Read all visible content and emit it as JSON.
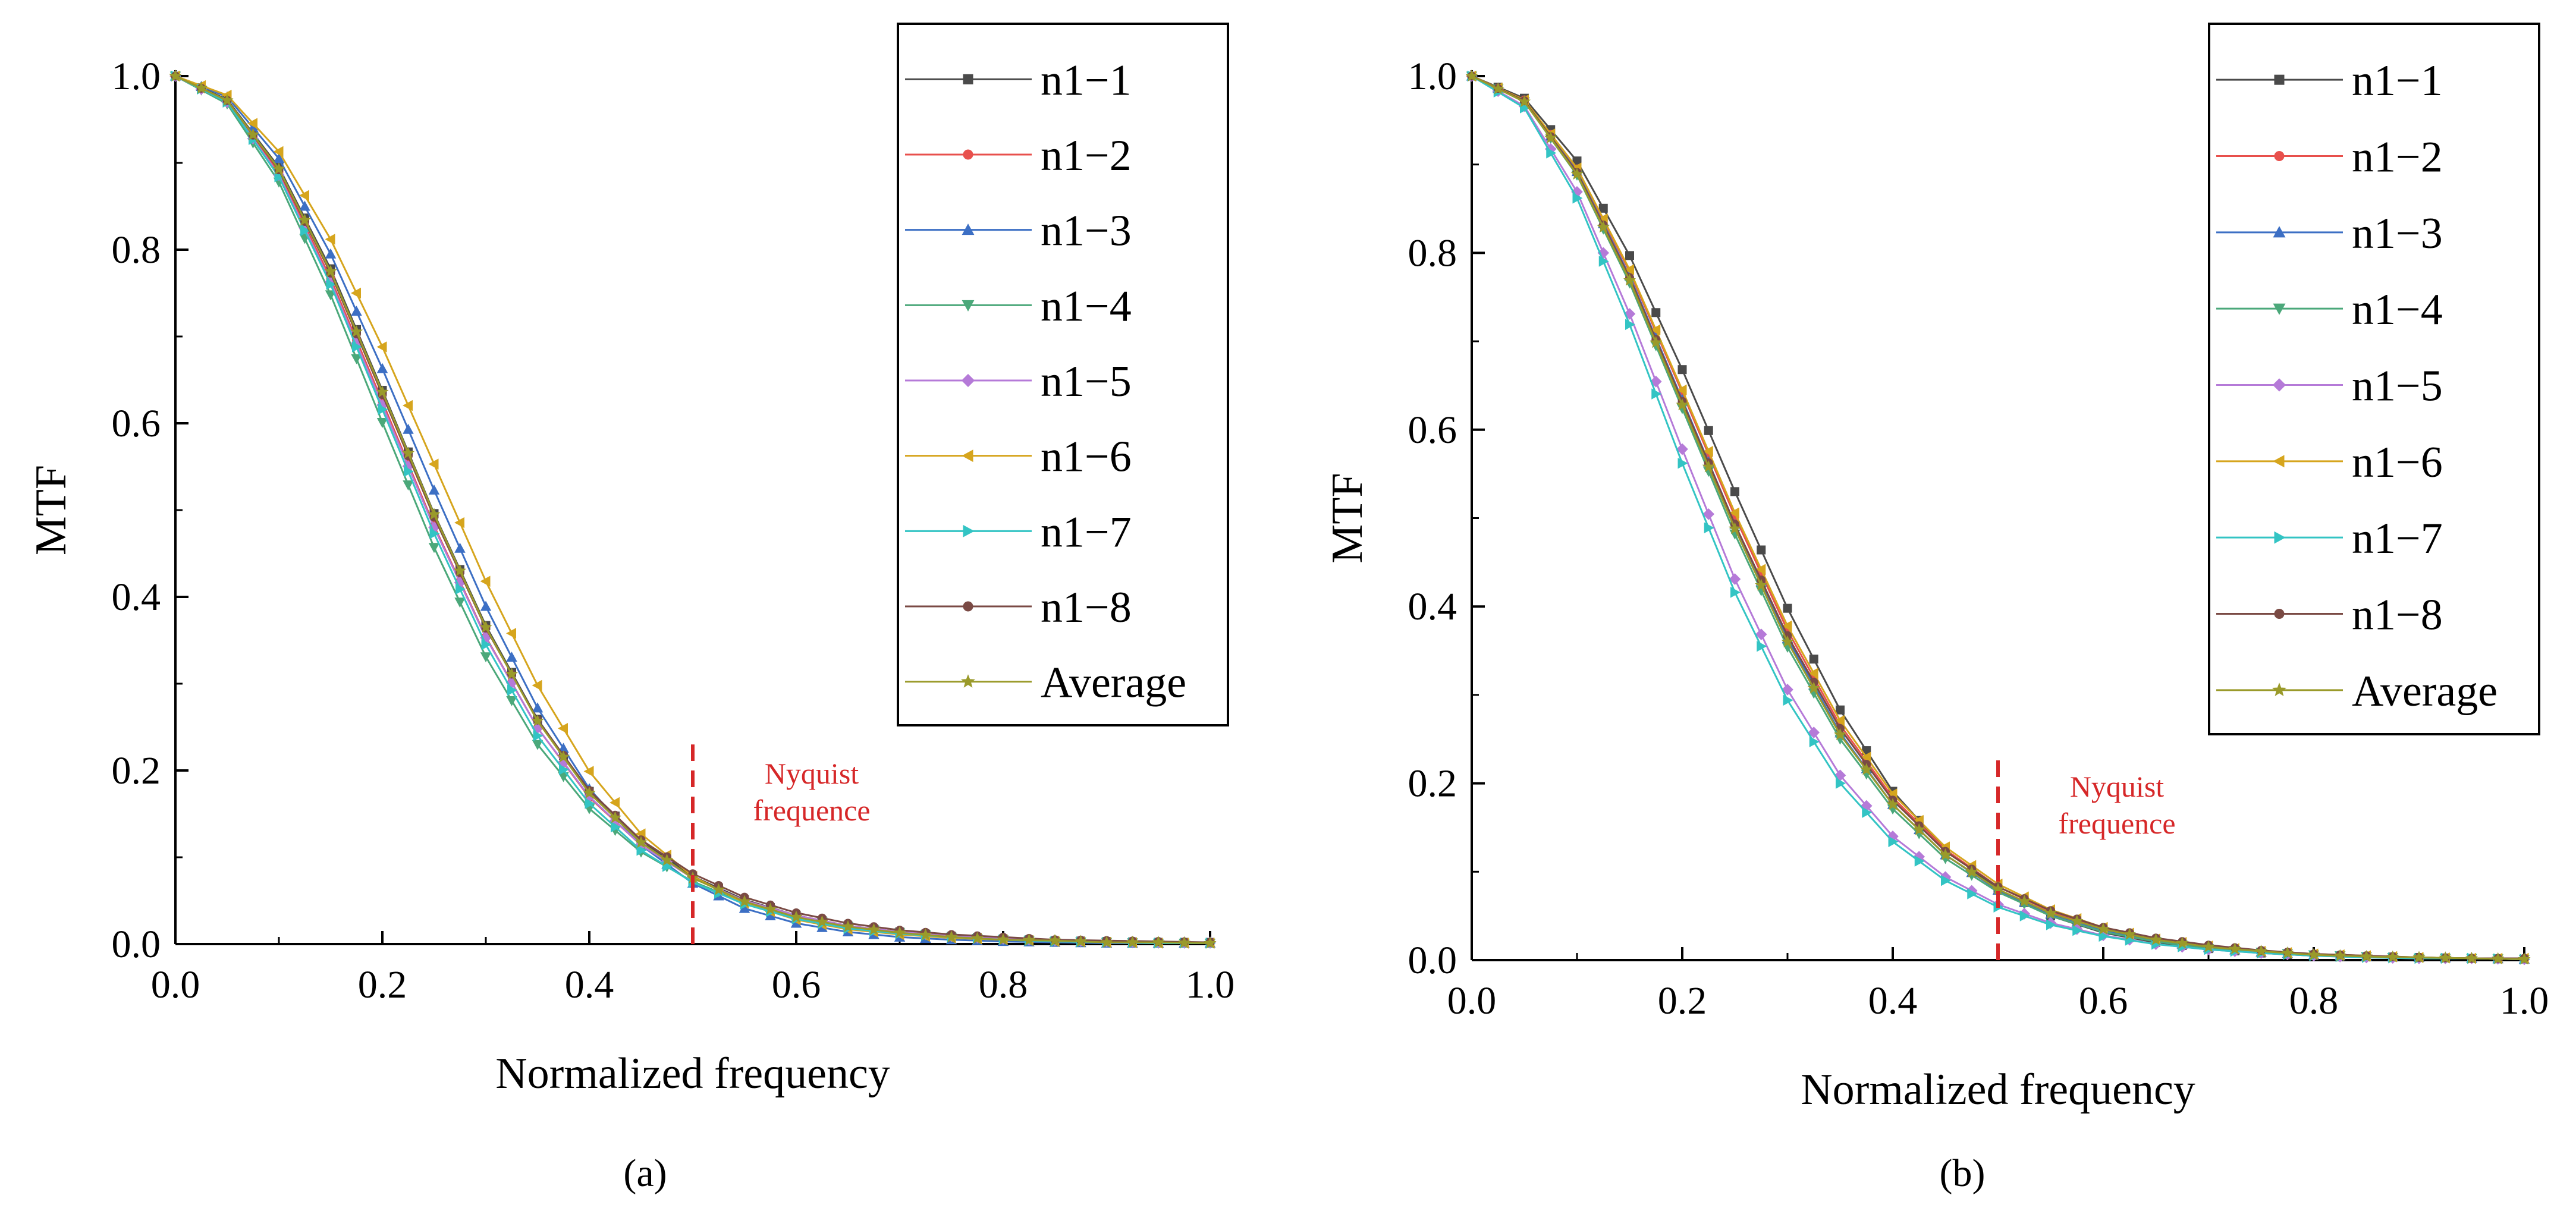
{
  "chart_data": [
    {
      "type": "line",
      "panel_label": "(a)",
      "xlabel": "Normalized frequency",
      "ylabel": "MTF",
      "xlim": [
        0,
        1.0
      ],
      "ylim": [
        0,
        1.0
      ],
      "xticks": [
        "0.0",
        "0.2",
        "0.4",
        "0.6",
        "0.8",
        "1.0"
      ],
      "yticks": [
        "0.0",
        "0.2",
        "0.4",
        "0.6",
        "0.8",
        "1.0"
      ],
      "x": [
        0.0,
        0.05,
        0.1,
        0.15,
        0.2,
        0.25,
        0.3,
        0.35,
        0.4,
        0.45,
        0.5,
        0.55,
        0.6,
        0.65,
        0.7,
        0.75,
        0.8,
        0.85,
        0.9,
        0.95,
        1.0
      ],
      "legend_position": "top-right",
      "annotation": {
        "x": 0.5,
        "lines": [
          "Nyquist",
          "frequence"
        ],
        "color": "#d62728"
      },
      "series": [
        {
          "name": "n1−1",
          "color": "#4a4a4a",
          "marker": "square",
          "values": [
            1.0,
            0.973,
            0.895,
            0.778,
            0.638,
            0.496,
            0.367,
            0.259,
            0.176,
            0.119,
            0.078,
            0.051,
            0.033,
            0.021,
            0.014,
            0.009,
            0.006,
            0.004,
            0.003,
            0.002,
            0.002
          ]
        },
        {
          "name": "n1−2",
          "color": "#e8504c",
          "marker": "circle",
          "values": [
            1.0,
            0.971,
            0.889,
            0.767,
            0.625,
            0.482,
            0.354,
            0.249,
            0.169,
            0.114,
            0.076,
            0.05,
            0.033,
            0.021,
            0.014,
            0.009,
            0.006,
            0.004,
            0.003,
            0.002,
            0.002
          ]
        },
        {
          "name": "n1−3",
          "color": "#3c6fc4",
          "marker": "triangle-up",
          "values": [
            1.0,
            0.976,
            0.905,
            0.795,
            0.663,
            0.523,
            0.389,
            0.272,
            0.179,
            0.114,
            0.07,
            0.041,
            0.024,
            0.014,
            0.008,
            0.005,
            0.003,
            0.002,
            0.001,
            0.001,
            0.001
          ]
        },
        {
          "name": "n1−4",
          "color": "#4ba87a",
          "marker": "triangle-down",
          "values": [
            1.0,
            0.968,
            0.878,
            0.748,
            0.601,
            0.457,
            0.331,
            0.23,
            0.156,
            0.106,
            0.072,
            0.048,
            0.031,
            0.02,
            0.013,
            0.008,
            0.005,
            0.003,
            0.002,
            0.001,
            0.001
          ]
        },
        {
          "name": "n1−5",
          "color": "#b57ad8",
          "marker": "diamond",
          "values": [
            1.0,
            0.97,
            0.886,
            0.763,
            0.621,
            0.48,
            0.353,
            0.249,
            0.17,
            0.114,
            0.076,
            0.05,
            0.033,
            0.021,
            0.014,
            0.009,
            0.006,
            0.004,
            0.003,
            0.002,
            0.002
          ]
        },
        {
          "name": "n1−6",
          "color": "#d6a51d",
          "marker": "triangle-left",
          "values": [
            1.0,
            0.978,
            0.913,
            0.812,
            0.688,
            0.553,
            0.418,
            0.298,
            0.199,
            0.127,
            0.078,
            0.047,
            0.028,
            0.017,
            0.011,
            0.007,
            0.005,
            0.003,
            0.002,
            0.001,
            0.001
          ]
        },
        {
          "name": "n1−7",
          "color": "#33c4c4",
          "marker": "triangle-right",
          "values": [
            1.0,
            0.97,
            0.884,
            0.76,
            0.616,
            0.473,
            0.345,
            0.24,
            0.162,
            0.108,
            0.071,
            0.046,
            0.029,
            0.018,
            0.012,
            0.008,
            0.005,
            0.003,
            0.002,
            0.001,
            0.001
          ]
        },
        {
          "name": "n1−8",
          "color": "#7a4a44",
          "marker": "circle",
          "values": [
            1.0,
            0.972,
            0.892,
            0.773,
            0.633,
            0.492,
            0.364,
            0.258,
            0.177,
            0.12,
            0.081,
            0.054,
            0.036,
            0.024,
            0.016,
            0.011,
            0.008,
            0.005,
            0.004,
            0.003,
            0.002
          ]
        },
        {
          "name": "Average",
          "color": "#9a9a2a",
          "marker": "star",
          "values": [
            1.0,
            0.972,
            0.893,
            0.775,
            0.636,
            0.495,
            0.365,
            0.257,
            0.174,
            0.117,
            0.076,
            0.049,
            0.031,
            0.02,
            0.013,
            0.008,
            0.005,
            0.004,
            0.002,
            0.002,
            0.001
          ]
        }
      ]
    },
    {
      "type": "line",
      "panel_label": "(b)",
      "xlabel": "Normalized frequency",
      "ylabel": "MTF",
      "xlim": [
        0,
        1.0
      ],
      "ylim": [
        0,
        1.0
      ],
      "xticks": [
        "0.0",
        "0.2",
        "0.4",
        "0.6",
        "0.8",
        "1.0"
      ],
      "yticks": [
        "0.0",
        "0.2",
        "0.4",
        "0.6",
        "0.8",
        "1.0"
      ],
      "x": [
        0.0,
        0.05,
        0.1,
        0.15,
        0.2,
        0.25,
        0.3,
        0.35,
        0.4,
        0.45,
        0.5,
        0.55,
        0.6,
        0.65,
        0.7,
        0.75,
        0.8,
        0.85,
        0.9,
        0.95,
        1.0
      ],
      "legend_position": "top-right",
      "annotation": {
        "x": 0.5,
        "lines": [
          "Nyquist",
          "frequence"
        ],
        "color": "#d62728"
      },
      "series": [
        {
          "name": "n1−1",
          "color": "#4a4a4a",
          "marker": "square",
          "values": [
            1.0,
            0.975,
            0.904,
            0.797,
            0.668,
            0.53,
            0.398,
            0.283,
            0.191,
            0.125,
            0.08,
            0.05,
            0.031,
            0.02,
            0.013,
            0.008,
            0.005,
            0.004,
            0.003,
            0.002,
            0.001
          ]
        },
        {
          "name": "n1−2",
          "color": "#e8504c",
          "marker": "circle",
          "values": [
            1.0,
            0.973,
            0.895,
            0.779,
            0.642,
            0.502,
            0.373,
            0.266,
            0.184,
            0.125,
            0.083,
            0.055,
            0.036,
            0.023,
            0.015,
            0.01,
            0.006,
            0.004,
            0.003,
            0.002,
            0.002
          ]
        },
        {
          "name": "n1−3",
          "color": "#3c6fc4",
          "marker": "triangle-up",
          "values": [
            1.0,
            0.972,
            0.892,
            0.774,
            0.634,
            0.493,
            0.364,
            0.257,
            0.176,
            0.119,
            0.079,
            0.052,
            0.034,
            0.022,
            0.014,
            0.009,
            0.006,
            0.004,
            0.003,
            0.002,
            0.001
          ]
        },
        {
          "name": "n1−4",
          "color": "#4ba87a",
          "marker": "triangle-down",
          "values": [
            1.0,
            0.971,
            0.888,
            0.766,
            0.624,
            0.482,
            0.354,
            0.25,
            0.171,
            0.115,
            0.077,
            0.05,
            0.032,
            0.021,
            0.013,
            0.009,
            0.006,
            0.004,
            0.002,
            0.002,
            0.001
          ]
        },
        {
          "name": "n1−5",
          "color": "#b57ad8",
          "marker": "diamond",
          "values": [
            1.0,
            0.966,
            0.869,
            0.731,
            0.578,
            0.431,
            0.306,
            0.209,
            0.14,
            0.094,
            0.063,
            0.042,
            0.028,
            0.018,
            0.012,
            0.008,
            0.005,
            0.003,
            0.002,
            0.002,
            0.001
          ]
        },
        {
          "name": "n1−6",
          "color": "#d6a51d",
          "marker": "triangle-left",
          "values": [
            1.0,
            0.973,
            0.896,
            0.781,
            0.645,
            0.506,
            0.378,
            0.271,
            0.188,
            0.128,
            0.086,
            0.057,
            0.037,
            0.024,
            0.016,
            0.01,
            0.007,
            0.005,
            0.003,
            0.002,
            0.002
          ]
        },
        {
          "name": "n1−7",
          "color": "#33c4c4",
          "marker": "triangle-right",
          "values": [
            1.0,
            0.964,
            0.862,
            0.719,
            0.562,
            0.416,
            0.294,
            0.2,
            0.134,
            0.09,
            0.06,
            0.04,
            0.027,
            0.018,
            0.012,
            0.008,
            0.005,
            0.003,
            0.002,
            0.002,
            0.001
          ]
        },
        {
          "name": "n1−8",
          "color": "#7a4a44",
          "marker": "circle",
          "values": [
            1.0,
            0.972,
            0.891,
            0.772,
            0.632,
            0.493,
            0.367,
            0.262,
            0.181,
            0.123,
            0.083,
            0.056,
            0.037,
            0.025,
            0.017,
            0.011,
            0.007,
            0.005,
            0.003,
            0.002,
            0.002
          ]
        },
        {
          "name": "Average",
          "color": "#9a9a2a",
          "marker": "star",
          "values": [
            1.0,
            0.971,
            0.889,
            0.769,
            0.628,
            0.488,
            0.36,
            0.255,
            0.176,
            0.119,
            0.08,
            0.053,
            0.035,
            0.023,
            0.015,
            0.01,
            0.006,
            0.004,
            0.003,
            0.002,
            0.001
          ]
        }
      ]
    }
  ]
}
